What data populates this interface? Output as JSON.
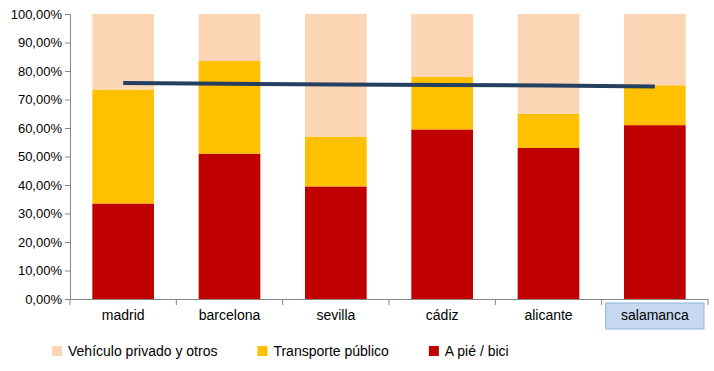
{
  "chart_data": {
    "type": "bar",
    "stacked": true,
    "grid": false,
    "legend": "bottom",
    "categories": [
      "madrid",
      "barcelona",
      "sevilla",
      "cádiz",
      "alicante",
      "salamanca"
    ],
    "ylim": [
      0,
      100
    ],
    "yticks": [
      {
        "value": 0,
        "label": "0,00%"
      },
      {
        "value": 10,
        "label": "10,00%"
      },
      {
        "value": 20,
        "label": "20,00%"
      },
      {
        "value": 30,
        "label": "30,00%"
      },
      {
        "value": 40,
        "label": "40,00%"
      },
      {
        "value": 50,
        "label": "50,00%"
      },
      {
        "value": 60,
        "label": "60,00%"
      },
      {
        "value": 70,
        "label": "70,00%"
      },
      {
        "value": 80,
        "label": "80,00%"
      },
      {
        "value": 90,
        "label": "90,00%"
      },
      {
        "value": 100,
        "label": "100,00%"
      }
    ],
    "series": [
      {
        "name": "Vehículo privado y otros",
        "color": "#fcd5b5",
        "values": [
          26.5,
          16.5,
          43,
          22,
          35,
          25
        ]
      },
      {
        "name": "Transporte público",
        "color": "#ffc000",
        "values": [
          40,
          32.5,
          17.5,
          18.5,
          12,
          14
        ]
      },
      {
        "name": "A pié / bici",
        "color": "#c00000",
        "values": [
          33.5,
          51,
          39.5,
          59.5,
          53,
          61
        ]
      },
      {
        "type": "line",
        "color": "#243f60",
        "values": [
          75.8,
          75.5,
          75.3,
          75.1,
          74.9,
          74.6
        ]
      }
    ]
  }
}
